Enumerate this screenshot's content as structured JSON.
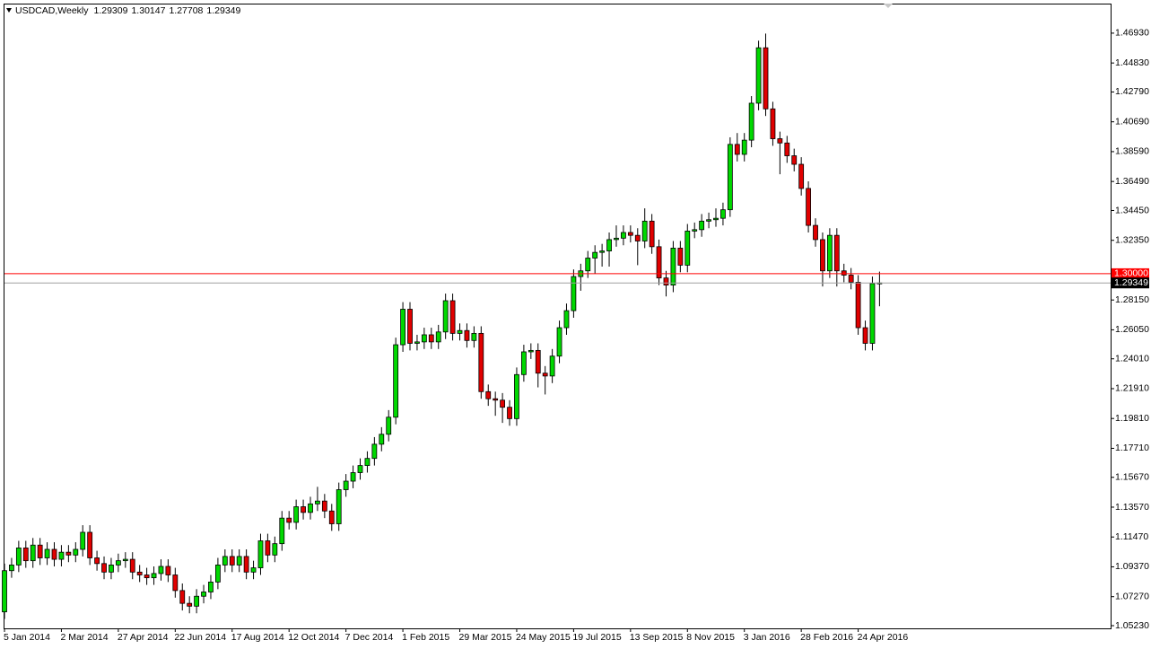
{
  "chart_data": {
    "type": "candlestick",
    "title": "USDCAD,Weekly",
    "up_color": "#00d800",
    "down_color": "#e00000",
    "grid": false,
    "ylim": [
      1.0504,
      1.4901
    ],
    "yticks": [
      {
        "value": 1.4693,
        "label": "1.46930"
      },
      {
        "value": 1.4483,
        "label": "1.44830"
      },
      {
        "value": 1.4279,
        "label": "1.42790"
      },
      {
        "value": 1.4069,
        "label": "1.40690"
      },
      {
        "value": 1.3859,
        "label": "1.38590"
      },
      {
        "value": 1.3649,
        "label": "1.36490"
      },
      {
        "value": 1.3445,
        "label": "1.34450"
      },
      {
        "value": 1.3235,
        "label": "1.32350"
      },
      {
        "value": 1.2815,
        "label": "1.28150"
      },
      {
        "value": 1.2605,
        "label": "1.26050"
      },
      {
        "value": 1.2401,
        "label": "1.24010"
      },
      {
        "value": 1.2191,
        "label": "1.21910"
      },
      {
        "value": 1.1981,
        "label": "1.19810"
      },
      {
        "value": 1.1771,
        "label": "1.17710"
      },
      {
        "value": 1.1567,
        "label": "1.15670"
      },
      {
        "value": 1.1357,
        "label": "1.13570"
      },
      {
        "value": 1.1147,
        "label": "1.11470"
      },
      {
        "value": 1.0937,
        "label": "1.09370"
      },
      {
        "value": 1.0727,
        "label": "1.07270"
      },
      {
        "value": 1.0523,
        "label": "1.05230"
      }
    ],
    "level": {
      "value": 1.3,
      "label": "1.30000",
      "color": "#ff0000"
    },
    "categories": [
      "5 Jan 2014",
      null,
      null,
      null,
      null,
      null,
      null,
      null,
      "2 Mar 2014",
      null,
      null,
      null,
      null,
      null,
      null,
      null,
      "27 Apr 2014",
      null,
      null,
      null,
      null,
      null,
      null,
      null,
      "22 Jun 2014",
      null,
      null,
      null,
      null,
      null,
      null,
      null,
      "17 Aug 2014",
      null,
      null,
      null,
      null,
      null,
      null,
      null,
      "12 Oct 2014",
      null,
      null,
      null,
      null,
      null,
      null,
      null,
      "7 Dec 2014",
      null,
      null,
      null,
      null,
      null,
      null,
      null,
      "1 Feb 2015",
      null,
      null,
      null,
      null,
      null,
      null,
      null,
      "29 Mar 2015",
      null,
      null,
      null,
      null,
      null,
      null,
      null,
      "24 May 2015",
      null,
      null,
      null,
      null,
      null,
      null,
      null,
      "19 Jul 2015",
      null,
      null,
      null,
      null,
      null,
      null,
      null,
      "13 Sep 2015",
      null,
      null,
      null,
      null,
      null,
      null,
      null,
      "8 Nov 2015",
      null,
      null,
      null,
      null,
      null,
      null,
      null,
      "3 Jan 2016",
      null,
      null,
      null,
      null,
      null,
      null,
      null,
      "28 Feb 2016",
      null,
      null,
      null,
      null,
      null,
      null,
      null,
      "24 Apr 2016",
      null,
      null,
      null
    ],
    "open": [
      1.062,
      1.091,
      1.095,
      1.107,
      1.098,
      1.109,
      1.1,
      1.106,
      1.099,
      1.104,
      1.102,
      1.106,
      1.118,
      1.1,
      1.096,
      1.09,
      1.095,
      1.098,
      1.099,
      1.09,
      1.088,
      1.086,
      1.089,
      1.094,
      1.088,
      1.077,
      1.068,
      1.066,
      1.073,
      1.076,
      1.083,
      1.095,
      1.101,
      1.095,
      1.101,
      1.09,
      1.093,
      1.112,
      1.102,
      1.11,
      1.128,
      1.125,
      1.136,
      1.132,
      1.138,
      1.14,
      1.133,
      1.124,
      1.148,
      1.154,
      1.16,
      1.165,
      1.17,
      1.18,
      1.187,
      1.199,
      1.25,
      1.275,
      1.251,
      1.252,
      1.257,
      1.252,
      1.259,
      1.281,
      1.258,
      1.26,
      1.253,
      1.258,
      1.217,
      1.212,
      1.211,
      1.206,
      1.198,
      1.229,
      1.245,
      1.246,
      1.23,
      1.228,
      1.242,
      1.262,
      1.274,
      1.298,
      1.302,
      1.311,
      1.315,
      1.316,
      1.324,
      1.325,
      1.329,
      1.327,
      1.323,
      1.337,
      1.319,
      1.297,
      1.292,
      1.318,
      1.306,
      1.33,
      1.331,
      1.337,
      1.338,
      1.339,
      1.345,
      1.391,
      1.384,
      1.394,
      1.42,
      1.459,
      1.416,
      1.395,
      1.392,
      1.383,
      1.377,
      1.36,
      1.334,
      1.324,
      1.302,
      1.327,
      1.302,
      1.299,
      1.294,
      1.262,
      1.251,
      1.29309
    ],
    "high": [
      1.096,
      1.1,
      1.112,
      1.112,
      1.114,
      1.114,
      1.111,
      1.111,
      1.109,
      1.109,
      1.111,
      1.123,
      1.123,
      1.105,
      1.101,
      1.1,
      1.103,
      1.104,
      1.104,
      1.095,
      1.093,
      1.094,
      1.099,
      1.099,
      1.093,
      1.082,
      1.073,
      1.078,
      1.081,
      1.088,
      1.1,
      1.106,
      1.106,
      1.106,
      1.106,
      1.098,
      1.117,
      1.117,
      1.115,
      1.133,
      1.133,
      1.141,
      1.141,
      1.143,
      1.15,
      1.145,
      1.138,
      1.153,
      1.159,
      1.165,
      1.17,
      1.175,
      1.185,
      1.192,
      1.204,
      1.255,
      1.28,
      1.28,
      1.257,
      1.262,
      1.262,
      1.264,
      1.286,
      1.286,
      1.265,
      1.265,
      1.263,
      1.263,
      1.222,
      1.217,
      1.216,
      1.211,
      1.234,
      1.25,
      1.251,
      1.251,
      1.235,
      1.247,
      1.267,
      1.279,
      1.303,
      1.307,
      1.316,
      1.32,
      1.321,
      1.329,
      1.334,
      1.334,
      1.334,
      1.332,
      1.346,
      1.342,
      1.324,
      1.302,
      1.323,
      1.323,
      1.335,
      1.336,
      1.342,
      1.343,
      1.346,
      1.35,
      1.396,
      1.399,
      1.399,
      1.425,
      1.464,
      1.469,
      1.421,
      1.4,
      1.397,
      1.388,
      1.382,
      1.365,
      1.339,
      1.329,
      1.332,
      1.332,
      1.307,
      1.304,
      1.299,
      1.267,
      1.298,
      1.30147
    ],
    "low": [
      1.057,
      1.086,
      1.09,
      1.093,
      1.093,
      1.095,
      1.095,
      1.094,
      1.094,
      1.097,
      1.097,
      1.101,
      1.095,
      1.091,
      1.085,
      1.085,
      1.09,
      1.093,
      1.085,
      1.083,
      1.081,
      1.081,
      1.084,
      1.083,
      1.072,
      1.063,
      1.061,
      1.061,
      1.068,
      1.071,
      1.078,
      1.09,
      1.09,
      1.09,
      1.085,
      1.085,
      1.088,
      1.097,
      1.097,
      1.105,
      1.12,
      1.12,
      1.127,
      1.127,
      1.133,
      1.128,
      1.119,
      1.119,
      1.143,
      1.149,
      1.155,
      1.16,
      1.165,
      1.175,
      1.182,
      1.194,
      1.245,
      1.246,
      1.246,
      1.247,
      1.247,
      1.247,
      1.254,
      1.253,
      1.253,
      1.248,
      1.248,
      1.212,
      1.207,
      1.2,
      1.195,
      1.193,
      1.193,
      1.224,
      1.24,
      1.22,
      1.215,
      1.223,
      1.237,
      1.257,
      1.269,
      1.288,
      1.297,
      1.3,
      1.305,
      1.305,
      1.319,
      1.32,
      1.322,
      1.306,
      1.318,
      1.314,
      1.292,
      1.284,
      1.287,
      1.301,
      1.301,
      1.325,
      1.326,
      1.332,
      1.333,
      1.334,
      1.34,
      1.379,
      1.379,
      1.389,
      1.415,
      1.411,
      1.39,
      1.37,
      1.378,
      1.372,
      1.355,
      1.329,
      1.319,
      1.291,
      1.297,
      1.291,
      1.294,
      1.289,
      1.257,
      1.246,
      1.246,
      1.27708
    ],
    "close": [
      1.091,
      1.095,
      1.107,
      1.098,
      1.109,
      1.1,
      1.106,
      1.099,
      1.104,
      1.102,
      1.106,
      1.118,
      1.1,
      1.096,
      1.09,
      1.095,
      1.098,
      1.099,
      1.09,
      1.088,
      1.086,
      1.089,
      1.094,
      1.088,
      1.077,
      1.068,
      1.066,
      1.073,
      1.076,
      1.083,
      1.095,
      1.101,
      1.095,
      1.101,
      1.09,
      1.093,
      1.112,
      1.102,
      1.11,
      1.128,
      1.125,
      1.136,
      1.132,
      1.138,
      1.14,
      1.133,
      1.124,
      1.148,
      1.154,
      1.16,
      1.165,
      1.17,
      1.18,
      1.187,
      1.199,
      1.25,
      1.275,
      1.251,
      1.252,
      1.257,
      1.252,
      1.259,
      1.281,
      1.258,
      1.26,
      1.253,
      1.258,
      1.217,
      1.212,
      1.211,
      1.206,
      1.198,
      1.229,
      1.245,
      1.246,
      1.23,
      1.228,
      1.242,
      1.262,
      1.274,
      1.298,
      1.302,
      1.311,
      1.315,
      1.316,
      1.324,
      1.325,
      1.329,
      1.327,
      1.323,
      1.337,
      1.319,
      1.297,
      1.292,
      1.318,
      1.306,
      1.33,
      1.331,
      1.337,
      1.338,
      1.339,
      1.345,
      1.391,
      1.384,
      1.394,
      1.42,
      1.459,
      1.416,
      1.395,
      1.392,
      1.383,
      1.377,
      1.36,
      1.334,
      1.324,
      1.302,
      1.327,
      1.302,
      1.299,
      1.294,
      1.262,
      1.251,
      1.29309,
      1.29349
    ]
  }
}
